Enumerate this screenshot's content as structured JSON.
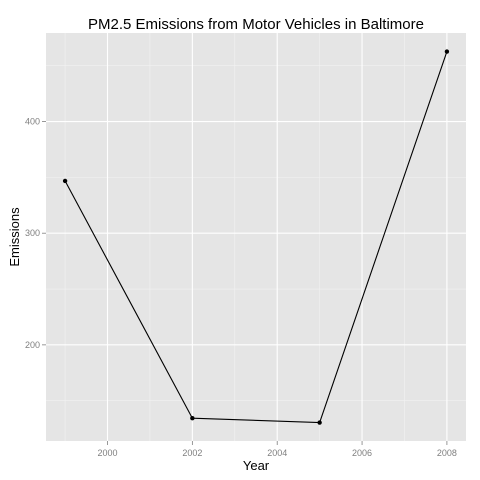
{
  "chart_data": {
    "type": "line",
    "title": "PM2.5 Emissions from Motor Vehicles in Baltimore",
    "xlabel": "Year",
    "ylabel": "Emissions",
    "x": [
      1999,
      2002,
      2005,
      2008
    ],
    "series": [
      {
        "values": [
          346.82,
          134.31,
          130.43,
          462.72
        ]
      }
    ],
    "xlim": [
      1998.55,
      2008.45
    ],
    "ylim": [
      113.9,
      479.3
    ],
    "x_ticks": [
      2000,
      2002,
      2004,
      2006,
      2008
    ],
    "y_ticks": [
      200,
      300,
      400
    ],
    "grid": true,
    "legend": "none",
    "colors": {
      "panel_background": "#e5e5e5",
      "major_grid": "#ffffff",
      "minor_grid": "#f2f2f2",
      "line": "#000000",
      "point": "#000000",
      "tick_label": "#7f7f7f"
    }
  }
}
